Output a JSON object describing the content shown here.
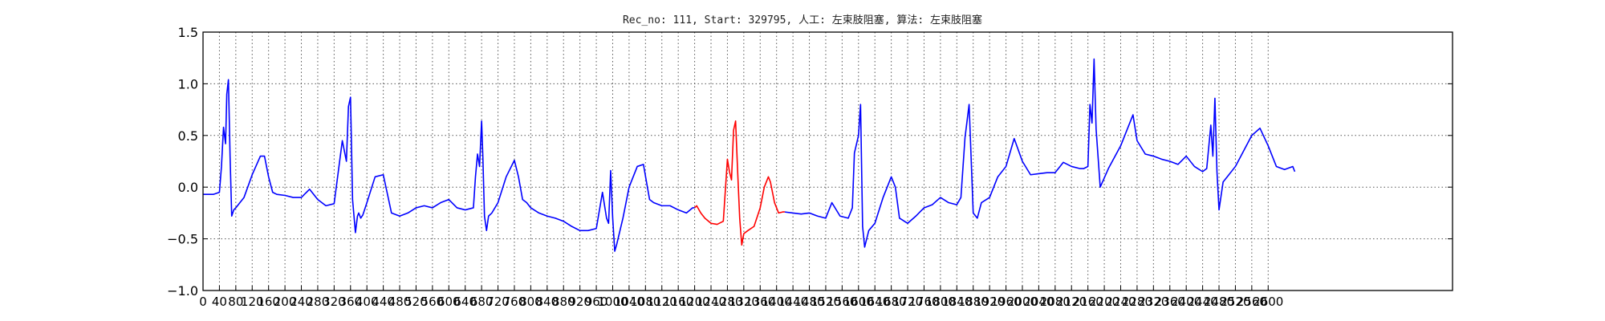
{
  "chart_data": {
    "type": "line",
    "title": "Rec_no: 111, Start: 329795, 人工: 左束肢阻塞, 算法: 左束肢阻塞",
    "xlabel": "",
    "ylabel": "",
    "xlim": [
      0,
      3050
    ],
    "ylim": [
      -1.0,
      1.5
    ],
    "grid": true,
    "x_ticks": [
      0,
      40,
      80,
      120,
      160,
      200,
      240,
      280,
      320,
      360,
      400,
      440,
      480,
      520,
      560,
      600,
      640,
      680,
      720,
      760,
      800,
      840,
      880,
      920,
      960,
      1000,
      1040,
      1080,
      1120,
      1160,
      1200,
      1240,
      1280,
      1320,
      1360,
      1400,
      1440,
      1480,
      1520,
      1560,
      1600,
      1640,
      1680,
      1720,
      1760,
      1800,
      1840,
      1880,
      1920,
      1960,
      2000,
      2040,
      2080,
      2120,
      2160,
      2200,
      2240,
      2280,
      2320,
      2360,
      2400,
      2440,
      2480,
      2520,
      2560,
      2600
    ],
    "x_tick_labels": [
      "0",
      "40",
      "80",
      "120",
      "160",
      "200",
      "240",
      "280",
      "320",
      "360",
      "400",
      "440",
      "480",
      "520",
      "560",
      "600",
      "640",
      "680",
      "720",
      "760",
      "800",
      "840",
      "880",
      "920",
      "960",
      "1000",
      "1040",
      "1080",
      "1120",
      "1160",
      "1200",
      "1240",
      "1280",
      "1320",
      "1360",
      "1400",
      "1440",
      "1480",
      "1520",
      "1560",
      "1600",
      "1640",
      "1680",
      "1720",
      "1760",
      "1800",
      "1840",
      "1880",
      "1920",
      "1960",
      "2000",
      "2040",
      "2080",
      "2120",
      "2160",
      "2200",
      "2240",
      "2280",
      "2320",
      "2360",
      "2400",
      "2440",
      "2480",
      "2520",
      "2560",
      "2600"
    ],
    "y_ticks": [
      -1.0,
      -0.5,
      0.0,
      0.5,
      1.0,
      1.5
    ],
    "y_tick_labels": [
      "−1.0",
      "−0.5",
      "0.0",
      "0.5",
      "1.0",
      "1.5"
    ],
    "series": [
      {
        "color": "#0000ff",
        "x": [
          0,
          25,
          40,
          45,
          50,
          55,
          58,
          62,
          66,
          70,
          75,
          80,
          100,
          120,
          140,
          150,
          160,
          170,
          180,
          200,
          220,
          240,
          260,
          280,
          300,
          320,
          340,
          350,
          355,
          360,
          365,
          372,
          377,
          380,
          385,
          390,
          400,
          420,
          440,
          460,
          480,
          500,
          520,
          540,
          560,
          580,
          600,
          620,
          640,
          660,
          665,
          670,
          675,
          680,
          683,
          687,
          692,
          697,
          705,
          720,
          740,
          760,
          770,
          780,
          790,
          800,
          820,
          840,
          860,
          880,
          900,
          920,
          940,
          960,
          975,
          985,
          990,
          995,
          1000,
          1005,
          1010,
          1025,
          1040,
          1060,
          1075,
          1090,
          1100,
          1120,
          1140,
          1160,
          1180,
          1195,
          1200
        ],
        "y": [
          -0.07,
          -0.07,
          -0.05,
          0.2,
          0.58,
          0.42,
          0.9,
          1.04,
          0.3,
          -0.28,
          -0.22,
          -0.2,
          -0.1,
          0.12,
          0.3,
          0.3,
          0.1,
          -0.05,
          -0.07,
          -0.08,
          -0.1,
          -0.1,
          -0.02,
          -0.12,
          -0.18,
          -0.16,
          0.45,
          0.25,
          0.78,
          0.87,
          -0.12,
          -0.44,
          -0.28,
          -0.25,
          -0.3,
          -0.27,
          -0.15,
          0.1,
          0.12,
          -0.25,
          -0.28,
          -0.25,
          -0.2,
          -0.18,
          -0.2,
          -0.15,
          -0.12,
          -0.2,
          -0.22,
          -0.2,
          0.1,
          0.32,
          0.2,
          0.64,
          0.3,
          -0.28,
          -0.42,
          -0.28,
          -0.25,
          -0.15,
          0.1,
          0.26,
          0.1,
          -0.12,
          -0.15,
          -0.2,
          -0.25,
          -0.28,
          -0.3,
          -0.33,
          -0.38,
          -0.42,
          -0.42,
          -0.4,
          -0.05,
          -0.3,
          -0.35,
          0.16,
          -0.3,
          -0.62,
          -0.55,
          -0.3,
          0.0,
          0.2,
          0.22,
          -0.12,
          -0.15,
          -0.18,
          -0.18,
          -0.22,
          -0.25,
          -0.2,
          -0.2
        ]
      },
      {
        "color": "#ff0000",
        "x": [
          1200,
          1205,
          1215,
          1225,
          1240,
          1255,
          1270,
          1280,
          1285,
          1290,
          1295,
          1300,
          1305,
          1310,
          1315,
          1320,
          1330,
          1345,
          1360,
          1370,
          1380,
          1385,
          1395,
          1405,
          1415,
          1420
        ],
        "y": [
          -0.2,
          -0.18,
          -0.25,
          -0.3,
          -0.35,
          -0.36,
          -0.33,
          0.27,
          0.15,
          0.07,
          0.55,
          0.64,
          0.15,
          -0.3,
          -0.56,
          -0.45,
          -0.42,
          -0.38,
          -0.2,
          0.0,
          0.1,
          0.05,
          -0.15,
          -0.25,
          -0.24,
          -0.24
        ]
      },
      {
        "color": "#0000ff",
        "x": [
          1420,
          1440,
          1460,
          1480,
          1500,
          1520,
          1535,
          1555,
          1575,
          1585,
          1590,
          1600,
          1605,
          1610,
          1615,
          1625,
          1640,
          1660,
          1680,
          1690,
          1700,
          1720,
          1740,
          1760,
          1780,
          1800,
          1820,
          1840,
          1850,
          1860,
          1870,
          1880,
          1890,
          1900,
          1920,
          1940,
          1960,
          1980,
          2000,
          2020,
          2040,
          2060,
          2080,
          2100,
          2120,
          2140,
          2150,
          2160,
          2165,
          2170,
          2175,
          2180,
          2190,
          2210,
          2240,
          2260,
          2270,
          2280,
          2300,
          2320,
          2340,
          2360,
          2380,
          2400,
          2420,
          2440,
          2450,
          2460,
          2465,
          2470,
          2475,
          2480,
          2490,
          2500,
          2520,
          2540,
          2560,
          2580,
          2600,
          2620,
          2640,
          2660,
          2665
        ],
        "y": [
          -0.24,
          -0.25,
          -0.26,
          -0.25,
          -0.28,
          -0.3,
          -0.15,
          -0.28,
          -0.3,
          -0.2,
          0.33,
          0.5,
          0.8,
          -0.38,
          -0.58,
          -0.42,
          -0.35,
          -0.1,
          0.1,
          0.0,
          -0.3,
          -0.35,
          -0.28,
          -0.2,
          -0.17,
          -0.1,
          -0.15,
          -0.17,
          -0.1,
          0.48,
          0.8,
          -0.25,
          -0.3,
          -0.15,
          -0.1,
          0.1,
          0.2,
          0.47,
          0.25,
          0.12,
          0.13,
          0.14,
          0.14,
          0.24,
          0.2,
          0.18,
          0.18,
          0.2,
          0.8,
          0.62,
          1.24,
          0.56,
          0.0,
          0.18,
          0.4,
          0.6,
          0.7,
          0.45,
          0.32,
          0.3,
          0.27,
          0.25,
          0.22,
          0.3,
          0.2,
          0.15,
          0.18,
          0.6,
          0.3,
          0.86,
          0.15,
          -0.22,
          0.05,
          0.1,
          0.2,
          0.35,
          0.5,
          0.57,
          0.4,
          0.2,
          0.17,
          0.2,
          0.15
        ]
      }
    ]
  }
}
